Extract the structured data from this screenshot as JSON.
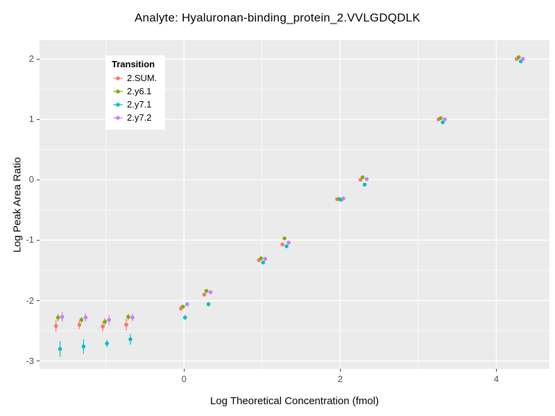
{
  "title": "Analyte: Hyaluronan-binding_protein_2.VVLGDQDLK",
  "chart_data": {
    "type": "scatter",
    "title": "Analyte: Hyaluronan-binding_protein_2.VVLGDQDLK",
    "xlabel": "Log Theoretical Concentration (fmol)",
    "ylabel": "Log Peak Area Ratio",
    "legend_title": "Transition",
    "legend_position": "inside-top-left",
    "grid": true,
    "panel_bg": "#EBEBEB",
    "grid_color": "#FFFFFF",
    "tick_label_color": "#4D4D4D",
    "xlim": [
      -1.85,
      4.68
    ],
    "ylim": [
      -3.13,
      2.31
    ],
    "xticks": [
      0,
      2,
      4
    ],
    "yticks": [
      -3,
      -2,
      -1,
      0,
      1,
      2
    ],
    "x": [
      -1.6,
      -1.3,
      -1.0,
      -0.7,
      0.0,
      0.3,
      1.0,
      1.3,
      2.0,
      2.3,
      3.3,
      4.3
    ],
    "series": [
      {
        "name": "2.SUM.",
        "color": "#F8766D",
        "values": [
          -2.42,
          -2.4,
          -2.43,
          -2.4,
          -2.13,
          -1.9,
          -1.33,
          -1.07,
          -0.32,
          0.0,
          1.0,
          2.0
        ],
        "errors": [
          0.1,
          0.07,
          0.08,
          0.1,
          0.04,
          0.03,
          0.02,
          0.02,
          0.01,
          0.01,
          0.01,
          0.01
        ]
      },
      {
        "name": "2.y6.1",
        "color": "#7CAE00",
        "values": [
          -2.28,
          -2.32,
          -2.35,
          -2.27,
          -2.1,
          -1.84,
          -1.3,
          -0.97,
          -0.32,
          0.04,
          1.02,
          2.03
        ],
        "errors": [
          0.06,
          0.05,
          0.06,
          0.05,
          0.03,
          0.02,
          0.02,
          0.02,
          0.01,
          0.01,
          0.01,
          0.01
        ]
      },
      {
        "name": "2.y7.1",
        "color": "#00BFC4",
        "values": [
          -2.8,
          -2.76,
          -2.71,
          -2.64,
          -2.28,
          -2.06,
          -1.37,
          -1.1,
          -0.33,
          -0.08,
          0.95,
          1.96
        ],
        "errors": [
          0.13,
          0.12,
          0.06,
          0.09,
          0.04,
          0.03,
          0.02,
          0.02,
          0.01,
          0.01,
          0.01,
          0.01
        ]
      },
      {
        "name": "2.y7.2",
        "color": "#C77CFF",
        "values": [
          -2.27,
          -2.28,
          -2.32,
          -2.28,
          -2.06,
          -1.86,
          -1.31,
          -1.04,
          -0.31,
          0.01,
          1.0,
          2.0
        ],
        "errors": [
          0.08,
          0.07,
          0.08,
          0.06,
          0.03,
          0.02,
          0.02,
          0.02,
          0.01,
          0.01,
          0.01,
          0.01
        ]
      }
    ]
  }
}
